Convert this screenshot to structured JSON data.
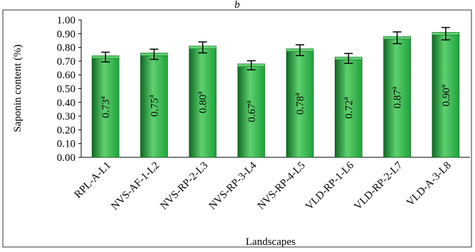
{
  "chart_data": {
    "type": "bar",
    "panel_label": "b",
    "title": "",
    "xlabel": "Landscapes",
    "ylabel": "Saponin content (%)",
    "ylim": [
      0,
      1.0
    ],
    "y_ticks": [
      "0.00",
      "0.10",
      "0.20",
      "0.30",
      "0.40",
      "0.50",
      "0.60",
      "0.70",
      "0.80",
      "0.90",
      "1.00"
    ],
    "categories": [
      "RPL-A-L1",
      "NVS-AF-1-L2",
      "NVS-RP-2-L3",
      "NVS-RP-3-L4",
      "NVS-RP-4-L5",
      "VLD-RP-1-L6",
      "VLD-RP-2-L7",
      "VLD-A-3-L8"
    ],
    "values": [
      0.73,
      0.75,
      0.8,
      0.67,
      0.78,
      0.72,
      0.87,
      0.9
    ],
    "errors": [
      0.035,
      0.037,
      0.04,
      0.033,
      0.039,
      0.036,
      0.043,
      0.045
    ],
    "data_labels": [
      "0.73",
      "0.75",
      "0.80",
      "0.67",
      "0.78",
      "0.72",
      "0.87",
      "0.90"
    ],
    "significance": [
      "a",
      "a",
      "a",
      "a",
      "a",
      "a",
      "a",
      "a"
    ],
    "bar_color": "#1fa23c",
    "bar_color_light": "#5fd06f",
    "bar_color_dark": "#0e6a22",
    "grid": false,
    "legend": "none"
  }
}
